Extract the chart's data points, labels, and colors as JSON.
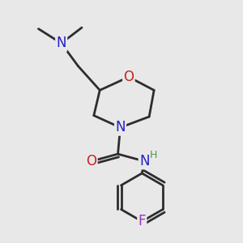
{
  "background_color": "#e8e8e8",
  "bond_color": "#2d2d2d",
  "N_color": "#2020cc",
  "O_color": "#cc2020",
  "F_color": "#9933bb",
  "H_color": "#4a9a4a",
  "line_width": 2.0,
  "figsize": [
    3.0,
    3.0
  ],
  "dpi": 100,
  "xlim": [
    0,
    10
  ],
  "ylim": [
    0,
    10
  ]
}
